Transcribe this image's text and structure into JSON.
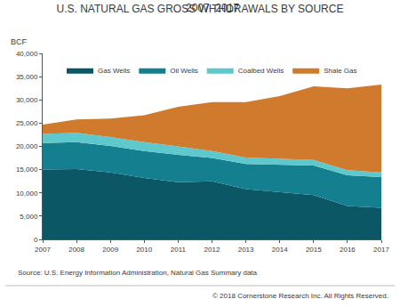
{
  "chart_data": {
    "type": "area",
    "title": "U.S. NATURAL GAS GROSS WITHDRAWALS BY SOURCE",
    "subtitle": "2007–2017",
    "ylabel": "BCF",
    "annotations": [
      "Source: U.S. Energy Information Administration, Natural Gas Summary data",
      "© 2018 Cornerstone Research Inc. All Rights Reserved."
    ],
    "stacked": true,
    "grid": false,
    "legend": "top",
    "x": [
      2007,
      2008,
      2009,
      2010,
      2011,
      2012,
      2013,
      2014,
      2015,
      2016,
      2017
    ],
    "xlim": [
      2007,
      2017
    ],
    "xticks": [
      2007,
      2008,
      2009,
      2010,
      2011,
      2012,
      2013,
      2014,
      2015,
      2016,
      2017
    ],
    "ylim": [
      0,
      40000
    ],
    "yticks": [
      0,
      {
        "value": 5000,
        "label": "5,000"
      },
      {
        "value": 10000,
        "label": "10,000"
      },
      {
        "value": 15000,
        "label": "15,000"
      },
      {
        "value": 20000,
        "label": "20,000"
      },
      {
        "value": 25000,
        "label": "25,000"
      },
      {
        "value": 30000,
        "label": "30,000"
      },
      {
        "value": 35000,
        "label": "35,000"
      },
      {
        "value": 40000,
        "label": "40,000"
      }
    ],
    "series": [
      {
        "name": "Gas Wells",
        "color": "#0b5766",
        "values": [
          15000,
          15100,
          14400,
          13200,
          12300,
          12500,
          10800,
          10200,
          9500,
          7200,
          6800
        ]
      },
      {
        "name": "Oil Wells",
        "color": "#137f8f",
        "values": [
          5700,
          5800,
          5700,
          5800,
          5900,
          5000,
          5400,
          5900,
          6400,
          6600,
          6600
        ]
      },
      {
        "name": "Coalbed Wells",
        "color": "#5ec8cc",
        "values": [
          2000,
          2000,
          1900,
          1900,
          1800,
          1500,
          1400,
          1300,
          1200,
          1100,
          1000
        ]
      },
      {
        "name": "Shale Gas",
        "color": "#cf7a2c",
        "values": [
          2000,
          2900,
          4000,
          5800,
          8500,
          10500,
          11900,
          13400,
          15800,
          17600,
          18900
        ]
      }
    ]
  }
}
